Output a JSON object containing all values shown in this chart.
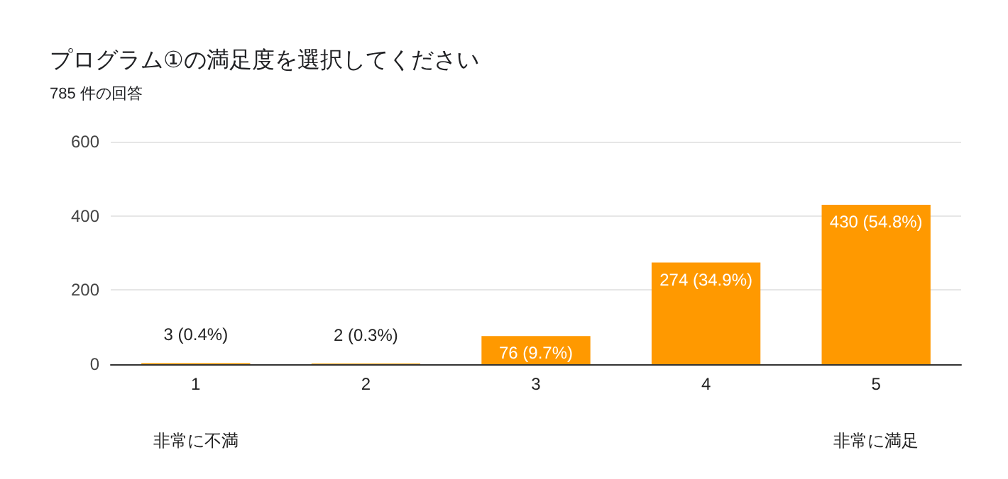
{
  "chart_data": {
    "type": "bar",
    "title": "プログラム①の満足度を選択してください",
    "subtitle": "785 件の回答",
    "categories": [
      "1",
      "2",
      "3",
      "4",
      "5"
    ],
    "values": [
      3,
      2,
      76,
      274,
      430
    ],
    "value_labels": [
      "3 (0.4%)",
      "2 (0.3%)",
      "76 (9.7%)",
      "274 (34.9%)",
      "430 (54.8%)"
    ],
    "color": "#ff9900",
    "ylim": [
      0,
      600
    ],
    "yticks": [
      0,
      200,
      400,
      600
    ],
    "grid": true,
    "annotations": [
      "非常に不満",
      "非常に満足"
    ]
  }
}
